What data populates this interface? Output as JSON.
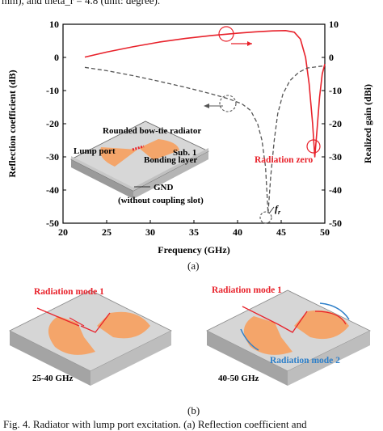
{
  "header_fragment": "mm), and theta_r = 4.8 (unit: degree).",
  "chart_data": {
    "type": "line",
    "xlabel": "Frequency (GHz)",
    "ylabel_left": "Reflection coefficient (dB)",
    "ylabel_right": "Realized gain (dBi)",
    "xlim": [
      20,
      50
    ],
    "ylim_left": [
      -50,
      10
    ],
    "ylim_right": [
      -50,
      10
    ],
    "x_ticks": [
      20,
      25,
      30,
      35,
      40,
      45,
      50
    ],
    "y_ticks_left": [
      10,
      0,
      -10,
      -20,
      -30,
      -40,
      -50
    ],
    "y_ticks_right": [
      10,
      0,
      -10,
      -20,
      -30,
      -40,
      -50
    ],
    "series": [
      {
        "axis": "right",
        "color": "#e8222b",
        "dash": "solid",
        "points": [
          [
            22.5,
            0.1
          ],
          [
            25,
            1.6
          ],
          [
            28,
            3.2
          ],
          [
            31,
            4.6
          ],
          [
            34,
            5.7
          ],
          [
            37,
            6.6
          ],
          [
            40,
            7.3
          ],
          [
            42,
            7.7
          ],
          [
            44,
            8.0
          ],
          [
            45.5,
            8.1
          ],
          [
            46.5,
            7.6
          ],
          [
            47.2,
            5.5
          ],
          [
            47.8,
            0
          ],
          [
            48.2,
            -8
          ],
          [
            48.6,
            -20
          ],
          [
            48.85,
            -30
          ],
          [
            49.1,
            -22
          ],
          [
            49.4,
            -12
          ],
          [
            49.7,
            -5
          ],
          [
            50,
            -2
          ]
        ]
      },
      {
        "axis": "left",
        "color": "#555555",
        "dash": "dashed",
        "points": [
          [
            22.5,
            -3.0
          ],
          [
            25,
            -4.0
          ],
          [
            28,
            -5.5
          ],
          [
            31,
            -7.2
          ],
          [
            34,
            -9.0
          ],
          [
            37,
            -11.0
          ],
          [
            39,
            -12.5
          ],
          [
            40.5,
            -14.0
          ],
          [
            41.5,
            -16.0
          ],
          [
            42.3,
            -20
          ],
          [
            42.8,
            -25
          ],
          [
            43.2,
            -33
          ],
          [
            43.5,
            -47
          ],
          [
            43.8,
            -36
          ],
          [
            44.2,
            -25
          ],
          [
            44.6,
            -17
          ],
          [
            45.2,
            -11
          ],
          [
            46,
            -7
          ],
          [
            47,
            -4.5
          ],
          [
            48,
            -3.2
          ],
          [
            50,
            -2.5
          ]
        ]
      }
    ],
    "annotations": {
      "radiation_zero": "Radiation zero",
      "fr": "f",
      "fr_sub": "r"
    }
  },
  "inset": {
    "radiator": "Rounded bow-tie radiator",
    "lump_port": "Lump port",
    "sub1": "Sub. 1",
    "bonding": "Bonding layer",
    "gnd": "GND",
    "gnd_note": "(without coupling slot)"
  },
  "panel_a_label": "(a)",
  "panel_b": {
    "left": {
      "mode1": "Radiation mode 1",
      "band": "25-40 GHz"
    },
    "right": {
      "mode1": "Radiation mode 1",
      "mode2": "Radiation mode 2",
      "band": "40-50 GHz"
    },
    "label": "(b)"
  },
  "caption": "Fig. 4.   Radiator with lump port excitation. (a) Reflection coefficient and"
}
